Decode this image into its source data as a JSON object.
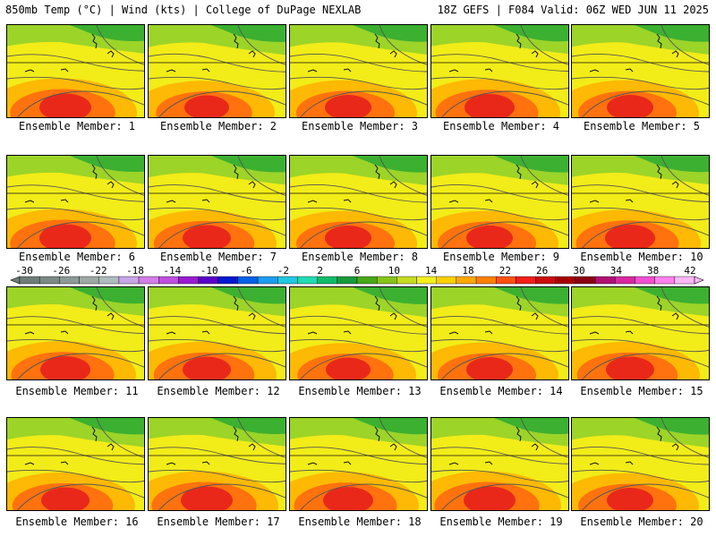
{
  "header": {
    "left_title": "850mb Temp (°C) | Wind (kts) | College of DuPage NEXLAB",
    "right_title": "18Z GEFS | F084 Valid: 06Z WED JUN 11 2025"
  },
  "member_label_prefix": "Ensemble Member: ",
  "members": [
    {
      "number": "1",
      "hot": 0.75
    },
    {
      "number": "2",
      "hot": 0.55
    },
    {
      "number": "3",
      "hot": 0.6
    },
    {
      "number": "4",
      "hot": 0.7
    },
    {
      "number": "5",
      "hot": 0.6
    },
    {
      "number": "6",
      "hot": 0.75
    },
    {
      "number": "7",
      "hot": 0.65
    },
    {
      "number": "8",
      "hot": 0.6
    },
    {
      "number": "9",
      "hot": 0.6
    },
    {
      "number": "10",
      "hot": 0.7
    },
    {
      "number": "11",
      "hot": 0.7
    },
    {
      "number": "12",
      "hot": 0.65
    },
    {
      "number": "13",
      "hot": 0.55
    },
    {
      "number": "14",
      "hot": 0.6
    },
    {
      "number": "15",
      "hot": 0.65
    },
    {
      "number": "16",
      "hot": 0.65
    },
    {
      "number": "17",
      "hot": 0.75
    },
    {
      "number": "18",
      "hot": 0.7
    },
    {
      "number": "19",
      "hot": 0.75
    },
    {
      "number": "20",
      "hot": 0.6
    }
  ],
  "colorbar": {
    "labels": [
      "-30",
      "-26",
      "-22",
      "-18",
      "-14",
      "-10",
      "-6",
      "-2",
      "2",
      "6",
      "10",
      "14",
      "18",
      "22",
      "26",
      "30",
      "34",
      "38",
      "42"
    ],
    "colors": [
      "#6e7d78",
      "#7c8a86",
      "#8d9996",
      "#9ea9a6",
      "#b0bbc0",
      "#c6a6e6",
      "#d27ee6",
      "#c04ee0",
      "#9a1bd0",
      "#5a00c8",
      "#0018d0",
      "#0060e8",
      "#1c9cf0",
      "#20c8e0",
      "#20dcb0",
      "#10bc6a",
      "#189a3c",
      "#48a818",
      "#86c418",
      "#c6dc20",
      "#f4f01c",
      "#ffd000",
      "#ffa800",
      "#ff8000",
      "#ff5010",
      "#f02018",
      "#cc0a10",
      "#a80000",
      "#8c0014",
      "#b01070",
      "#d828a0",
      "#f050d0",
      "#ff80ee",
      "#ffb8f8"
    ]
  }
}
